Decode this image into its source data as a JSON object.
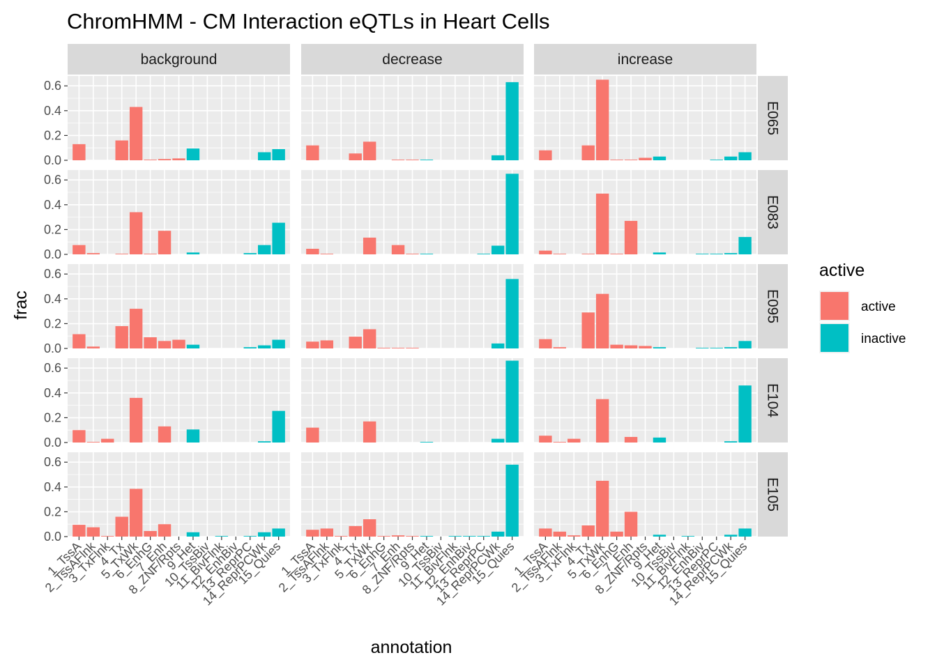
{
  "chart_data": {
    "type": "bar",
    "title": "ChromHMM - CM Interaction eQTLs in Heart Cells",
    "xlabel": "annotation",
    "ylabel": "frac",
    "ylim": [
      0,
      0.68
    ],
    "yticks": [
      0.0,
      0.2,
      0.4,
      0.6
    ],
    "ytick_labels": [
      "0.0",
      "0.2",
      "0.4",
      "0.6"
    ],
    "grid": true,
    "facet_cols": [
      "background",
      "decrease",
      "increase"
    ],
    "facet_rows": [
      "E065",
      "E083",
      "E095",
      "E104",
      "E105"
    ],
    "categories": [
      "1_TssA",
      "2_TssAFlnk",
      "3_TxFlnk",
      "4_Tx",
      "5_TxWk",
      "6_EnhG",
      "7_Enh",
      "8_ZNF/Rpts",
      "9_Het",
      "10_TssBiv",
      "11_BivFlnk",
      "12_EnhBiv",
      "13_ReprPC",
      "14_ReprPCWk",
      "15_Quies"
    ],
    "category_group": [
      "active",
      "active",
      "active",
      "active",
      "active",
      "active",
      "active",
      "active",
      "inactive",
      "inactive",
      "inactive",
      "inactive",
      "inactive",
      "inactive",
      "inactive"
    ],
    "legend": {
      "title": "active",
      "position": "right",
      "entries": [
        {
          "label": "active",
          "color": "#F8766D"
        },
        {
          "label": "inactive",
          "color": "#00BFC4"
        }
      ]
    },
    "panels": [
      {
        "row": "E065",
        "col": "background",
        "values": [
          0.13,
          0,
          0,
          0.16,
          0.43,
          0.005,
          0.01,
          0.015,
          0.095,
          0,
          0,
          0,
          0,
          0.065,
          0.09
        ]
      },
      {
        "row": "E065",
        "col": "decrease",
        "values": [
          0.12,
          0,
          0,
          0.055,
          0.15,
          0,
          0.005,
          0.005,
          0.005,
          0,
          0,
          0,
          0,
          0.04,
          0.63
        ]
      },
      {
        "row": "E065",
        "col": "increase",
        "values": [
          0.08,
          0,
          0,
          0.12,
          0.65,
          0.005,
          0.005,
          0.02,
          0.03,
          0,
          0,
          0,
          0.005,
          0.03,
          0.065
        ]
      },
      {
        "row": "E083",
        "col": "background",
        "values": [
          0.075,
          0.01,
          0,
          0.005,
          0.34,
          0.005,
          0.19,
          0,
          0.015,
          0,
          0,
          0,
          0.01,
          0.075,
          0.255
        ]
      },
      {
        "row": "E083",
        "col": "decrease",
        "values": [
          0.045,
          0.005,
          0,
          0,
          0.135,
          0,
          0.075,
          0.005,
          0.005,
          0,
          0,
          0,
          0.005,
          0.07,
          0.65
        ]
      },
      {
        "row": "E083",
        "col": "increase",
        "values": [
          0.03,
          0.005,
          0,
          0.005,
          0.49,
          0.005,
          0.27,
          0,
          0.015,
          0,
          0,
          0.005,
          0.005,
          0.01,
          0.14
        ]
      },
      {
        "row": "E095",
        "col": "background",
        "values": [
          0.115,
          0.015,
          0,
          0.18,
          0.32,
          0.09,
          0.06,
          0.07,
          0.03,
          0,
          0,
          0,
          0.01,
          0.025,
          0.07
        ]
      },
      {
        "row": "E095",
        "col": "decrease",
        "values": [
          0.055,
          0.065,
          0,
          0.095,
          0.155,
          0.005,
          0.005,
          0.005,
          0,
          0,
          0,
          0,
          0,
          0.04,
          0.56
        ]
      },
      {
        "row": "E095",
        "col": "increase",
        "values": [
          0.075,
          0.01,
          0,
          0.29,
          0.44,
          0.03,
          0.025,
          0.02,
          0.01,
          0,
          0,
          0.005,
          0.005,
          0.01,
          0.06
        ]
      },
      {
        "row": "E104",
        "col": "background",
        "values": [
          0.1,
          0.005,
          0.03,
          0,
          0.36,
          0,
          0.13,
          0,
          0.105,
          0,
          0,
          0,
          0,
          0.01,
          0.255
        ]
      },
      {
        "row": "E104",
        "col": "decrease",
        "values": [
          0.12,
          0,
          0,
          0,
          0.17,
          0,
          0,
          0,
          0.005,
          0,
          0,
          0,
          0,
          0.03,
          0.66
        ]
      },
      {
        "row": "E104",
        "col": "increase",
        "values": [
          0.055,
          0.005,
          0.03,
          0,
          0.35,
          0,
          0.045,
          0,
          0.04,
          0,
          0,
          0,
          0,
          0.01,
          0.46
        ]
      },
      {
        "row": "E105",
        "col": "background",
        "values": [
          0.095,
          0.075,
          0.005,
          0.16,
          0.385,
          0.045,
          0.1,
          0,
          0.035,
          0,
          0.005,
          0,
          0.005,
          0.035,
          0.065
        ]
      },
      {
        "row": "E105",
        "col": "decrease",
        "values": [
          0.055,
          0.065,
          0.005,
          0.085,
          0.14,
          0.005,
          0.01,
          0.005,
          0.005,
          0,
          0.005,
          0.005,
          0.005,
          0.04,
          0.58
        ]
      },
      {
        "row": "E105",
        "col": "increase",
        "values": [
          0.065,
          0.04,
          0.01,
          0.09,
          0.45,
          0.04,
          0.2,
          0,
          0.015,
          0,
          0.005,
          0,
          0,
          0.015,
          0.065
        ]
      }
    ]
  }
}
